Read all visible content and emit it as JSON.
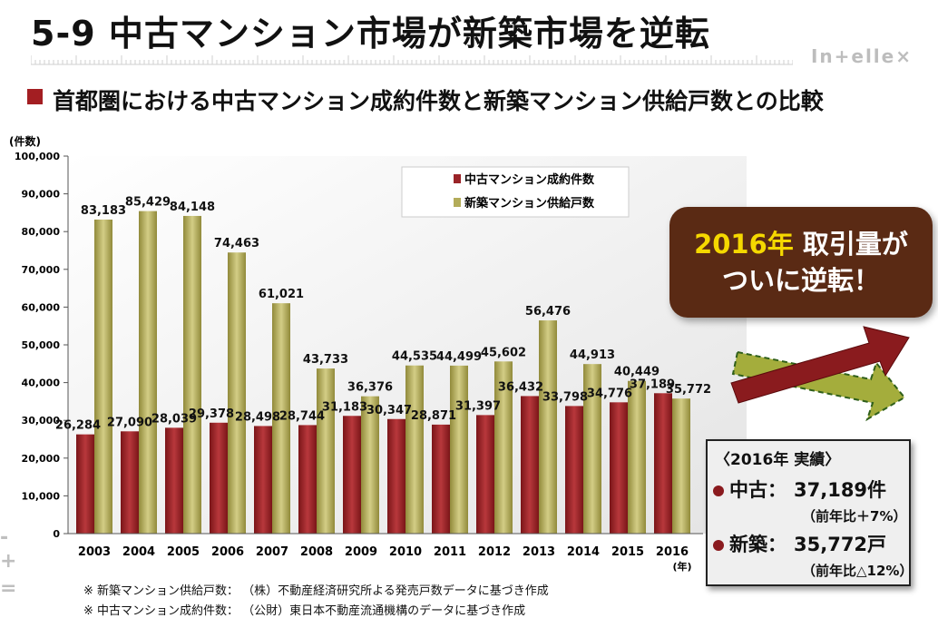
{
  "slide": {
    "title": "5-9 中古マンション市場が新築市場を逆転",
    "logo": "In+elle×",
    "subtitle": "首都圏における中古マンション成約件数と新築マンション供給戸数との比較"
  },
  "chart_data": {
    "type": "bar",
    "ylabel": "(件数)",
    "xlabel": "(年)",
    "ylim": [
      0,
      100000
    ],
    "yticks": [
      "0",
      "10,000",
      "20,000",
      "30,000",
      "40,000",
      "50,000",
      "60,000",
      "70,000",
      "80,000",
      "90,000",
      "100,000"
    ],
    "categories": [
      "2003",
      "2004",
      "2005",
      "2006",
      "2007",
      "2008",
      "2009",
      "2010",
      "2011",
      "2012",
      "2013",
      "2014",
      "2015",
      "2016"
    ],
    "legend_position": "top-right",
    "series": [
      {
        "name": "中古マンション成約件数",
        "color": "#9a2428",
        "values": [
          26284,
          27090,
          28039,
          29378,
          28498,
          28744,
          31183,
          30347,
          28871,
          31397,
          36432,
          33798,
          34776,
          37189
        ],
        "labels": [
          "26,284",
          "27,090",
          "28,039",
          "29,378",
          "28,498",
          "28,744",
          "31,183",
          "30,347",
          "28,871",
          "31,397",
          "36,432",
          "33,798",
          "34,776",
          "37,189"
        ]
      },
      {
        "name": "新築マンション供給戸数",
        "color": "#b3ac5a",
        "values": [
          83183,
          85429,
          84148,
          74463,
          61021,
          43733,
          36376,
          44535,
          44499,
          45602,
          56476,
          44913,
          40449,
          35772
        ],
        "labels": [
          "83,183",
          "85,429",
          "84,148",
          "74,463",
          "61,021",
          "43,733",
          "36,376",
          "44,535",
          "44,499",
          "45,602",
          "56,476",
          "44,913",
          "40,449",
          "35,772"
        ]
      }
    ]
  },
  "callout": {
    "line1_highlight": "2016年",
    "line1_rest": "取引量が",
    "line2": "ついに逆転！"
  },
  "result_box": {
    "title": "〈2016年 実績〉",
    "used_label": "中古：",
    "used_value": "37,189件",
    "used_change": "（前年比＋7%）",
    "new_label": "新築：",
    "new_value": "35,772戸",
    "new_change": "（前年比△12%）"
  },
  "footnotes": [
    "※ 新築マンション供給戸数： （株）不動産経済研究所よる発売戸数データに基づき作成",
    "※ 中古マンション成約件数： （公財）東日本不動産流通機構のデータに基づき作成"
  ],
  "side_deco": [
    "-",
    "+",
    "="
  ]
}
